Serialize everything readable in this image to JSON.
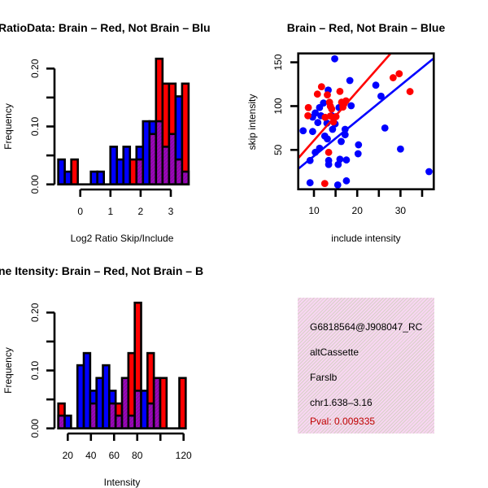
{
  "colors": {
    "red": "#ff0000",
    "blue": "#0000ff",
    "purple": "#9400c8",
    "pval": "#c00000"
  },
  "chart_data": [
    {
      "type": "bar",
      "subtype": "overlaid-histogram",
      "title": "RatioData: Brain – Red, Not Brain – Blu",
      "xlabel": "Log2 Ratio Skip/Include",
      "ylabel": "Frequency",
      "ylim": [
        0,
        0.2
      ],
      "xticks": [
        0,
        1,
        2,
        3
      ],
      "xticklabels": [
        "0",
        "1",
        "2",
        "3"
      ],
      "yticks": [
        0,
        0.05,
        0.1,
        0.15,
        0.2
      ],
      "yticklabels": [
        "0.00",
        "",
        "0.10",
        "",
        "0.20"
      ],
      "bin_start": -0.73,
      "bin_width": 0.216,
      "series": [
        {
          "name": "Not Brain",
          "color": "blue",
          "values": [
            0.043,
            0.022,
            0,
            0,
            0,
            0.022,
            0.022,
            0,
            0.065,
            0.043,
            0.065,
            0,
            0.065,
            0.109,
            0.109,
            0.109,
            0.065,
            0.087,
            0.152,
            0.022
          ]
        },
        {
          "name": "Brain",
          "color": "red",
          "values": [
            0,
            0,
            0.043,
            0,
            0,
            0,
            0,
            0,
            0,
            0,
            0,
            0.043,
            0.043,
            0,
            0.087,
            0.217,
            0.174,
            0.174,
            0.043,
            0.174
          ]
        }
      ]
    },
    {
      "type": "scatter",
      "title": "Brain – Red, Not Brain – Blue",
      "xlabel": "include intensity",
      "ylabel": "skip intensity",
      "xlim": [
        6.2,
        37.7
      ],
      "ylim": [
        4,
        159
      ],
      "xticks": [
        10,
        15,
        20,
        25,
        30,
        35
      ],
      "xticklabels": [
        "10",
        "",
        "20",
        "",
        "30",
        ""
      ],
      "yticks": [
        50,
        100,
        150
      ],
      "yticklabels": [
        "50",
        "100",
        "150"
      ],
      "series": [
        {
          "name": "Brain",
          "color": "red",
          "fit": {
            "intercept": 4.8,
            "slope": 5.6
          },
          "points": [
            [
              11.75,
              122.1
            ],
            [
              10.8,
              113.7
            ],
            [
              13.1,
              112.8
            ],
            [
              16.0,
              116.8
            ],
            [
              13.6,
              104.4
            ],
            [
              14.1,
              96.7
            ],
            [
              16.4,
              104.4
            ],
            [
              17.4,
              106
            ],
            [
              8.7,
              98.3
            ],
            [
              8.6,
              89
            ],
            [
              13.4,
              47.2
            ],
            [
              12.5,
              11.6
            ],
            [
              13.8,
              99.8
            ],
            [
              13.8,
              88.7
            ],
            [
              16.7,
              98.9
            ],
            [
              15.1,
              88
            ],
            [
              14.5,
              82
            ],
            [
              12.6,
              87.2
            ],
            [
              28.3,
              132.4
            ],
            [
              29.7,
              137.0
            ],
            [
              32.2,
              116.6
            ],
            [
              17.0,
              103
            ]
          ]
        },
        {
          "name": "Not Brain",
          "color": "blue",
          "fit": {
            "intercept": 2.7,
            "slope": 4.03
          },
          "points": [
            [
              14.8,
              154
            ],
            [
              18.3,
              129.2
            ],
            [
              13.3,
              118.3
            ],
            [
              24.3,
              123.9
            ],
            [
              12.2,
              103.5
            ],
            [
              15.8,
              98.3
            ],
            [
              18.6,
              100.4
            ],
            [
              11.3,
              98.3
            ],
            [
              10.3,
              92.1
            ],
            [
              9.7,
              87.4
            ],
            [
              11.6,
              89
            ],
            [
              14.1,
              89
            ],
            [
              10.9,
              81.2
            ],
            [
              13.0,
              80.6
            ],
            [
              7.5,
              71.9
            ],
            [
              9.7,
              71
            ],
            [
              14.9,
              79.7
            ],
            [
              14.3,
              73.5
            ],
            [
              17.2,
              73.5
            ],
            [
              12.5,
              65.8
            ],
            [
              13.1,
              62.6
            ],
            [
              17.2,
              67.3
            ],
            [
              16.3,
              59.6
            ],
            [
              20.3,
              55.8
            ],
            [
              11.3,
              51.9
            ],
            [
              10.3,
              47.2
            ],
            [
              20.2,
              45.6
            ],
            [
              9.1,
              37.9
            ],
            [
              13.4,
              37.9
            ],
            [
              13.4,
              33.3
            ],
            [
              16.0,
              39.4
            ],
            [
              17.5,
              38.5
            ],
            [
              15.6,
              33.3
            ],
            [
              9.1,
              12.5
            ],
            [
              15.5,
              10
            ],
            [
              17.5,
              14.7
            ],
            [
              25.5,
              111.3
            ],
            [
              26.4,
              75
            ],
            [
              30.0,
              51
            ],
            [
              36.6,
              25.2
            ]
          ]
        }
      ]
    },
    {
      "type": "bar",
      "subtype": "overlaid-histogram",
      "title": "ne Itensity: Brain – Red, Not Brain – B",
      "xlabel": "Intensity",
      "ylabel": "Frequency",
      "ylim": [
        0,
        0.2
      ],
      "xticks": [
        20,
        40,
        60,
        80,
        100,
        120
      ],
      "xticklabels": [
        "20",
        "40",
        "60",
        "80",
        "",
        "120"
      ],
      "yticks": [
        0,
        0.05,
        0.1,
        0.15,
        0.2
      ],
      "yticklabels": [
        "0.00",
        "",
        "0.10",
        "",
        "0.20"
      ],
      "bin_start": 11.85,
      "bin_width": 5.5,
      "series": [
        {
          "name": "Not Brain",
          "color": "blue",
          "values": [
            0.022,
            0.022,
            0,
            0.109,
            0.13,
            0.065,
            0.087,
            0.109,
            0.065,
            0.022,
            0.087,
            0.022,
            0.065,
            0.065,
            0.043,
            0.087,
            0,
            0,
            0,
            0
          ]
        },
        {
          "name": "Brain",
          "color": "red",
          "values": [
            0.043,
            0,
            0,
            0,
            0,
            0.043,
            0,
            0,
            0.043,
            0.043,
            0.087,
            0.13,
            0.217,
            0,
            0.13,
            0.087,
            0.087,
            0,
            0,
            0.087
          ]
        }
      ]
    }
  ],
  "info": {
    "id": "G6818564@J908047_RC",
    "event_type": "altCassette",
    "gene": "Farslb",
    "location": "chr1.638–3.16",
    "pval": "Pval: 0.009335"
  }
}
